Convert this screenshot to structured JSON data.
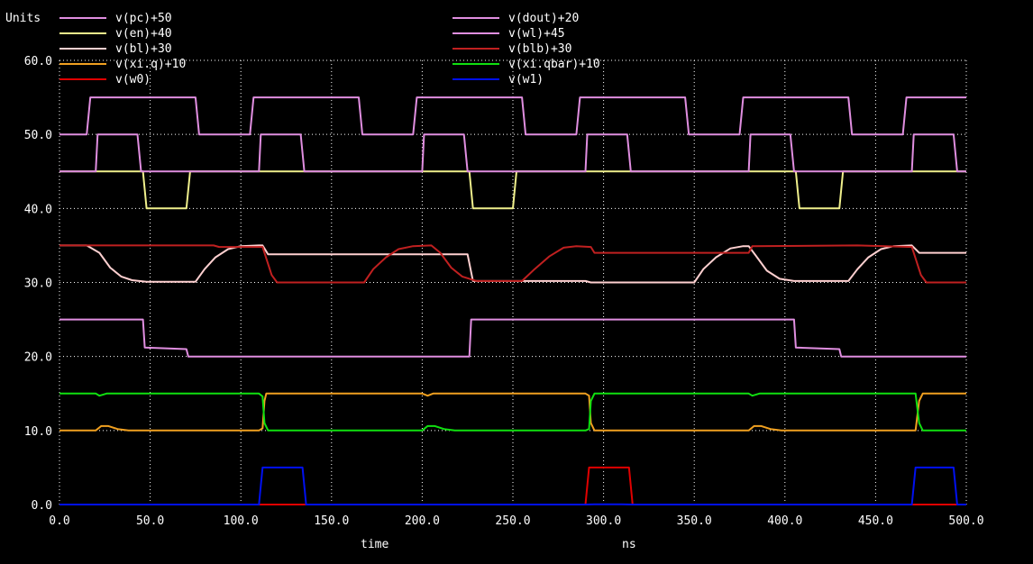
{
  "chart_data": {
    "type": "line",
    "units_label": "Units",
    "xlabel": "time",
    "xunit": "ns",
    "xlim": [
      0,
      500
    ],
    "ylim": [
      0,
      60
    ],
    "xticks": [
      "0.0",
      "50.0",
      "100.0",
      "150.0",
      "200.0",
      "250.0",
      "300.0",
      "350.0",
      "400.0",
      "450.0",
      "500.0"
    ],
    "yticks": [
      "0.0",
      "10.0",
      "20.0",
      "30.0",
      "40.0",
      "50.0",
      "60.0"
    ],
    "grid": true,
    "legend_position": "top",
    "series": [
      {
        "name": "v(pc)+50",
        "color": "#e08ee0",
        "points": [
          [
            0,
            50
          ],
          [
            15,
            50
          ],
          [
            17,
            55
          ],
          [
            75,
            55
          ],
          [
            77,
            50
          ],
          [
            105,
            50
          ],
          [
            107,
            55
          ],
          [
            165,
            55
          ],
          [
            167,
            50
          ],
          [
            195,
            50
          ],
          [
            197,
            55
          ],
          [
            255,
            55
          ],
          [
            257,
            50
          ],
          [
            285,
            50
          ],
          [
            287,
            55
          ],
          [
            345,
            55
          ],
          [
            347,
            50
          ],
          [
            375,
            50
          ],
          [
            377,
            55
          ],
          [
            435,
            55
          ],
          [
            437,
            50
          ],
          [
            465,
            50
          ],
          [
            467,
            55
          ],
          [
            500,
            55
          ]
        ]
      },
      {
        "name": "v(dout)+20",
        "color": "#e08ee0",
        "points": [
          [
            0,
            25
          ],
          [
            46,
            25
          ],
          [
            47,
            21.2
          ],
          [
            70,
            21
          ],
          [
            71,
            20
          ],
          [
            226,
            20
          ],
          [
            227,
            25
          ],
          [
            405,
            25
          ],
          [
            406,
            21.2
          ],
          [
            430,
            21
          ],
          [
            431,
            20
          ],
          [
            500,
            20
          ]
        ]
      },
      {
        "name": "v(en)+40",
        "color": "#f0f08c",
        "points": [
          [
            0,
            45
          ],
          [
            46,
            45
          ],
          [
            48,
            40
          ],
          [
            70,
            40
          ],
          [
            72,
            45
          ],
          [
            226,
            45
          ],
          [
            228,
            40
          ],
          [
            250,
            40
          ],
          [
            252,
            45
          ],
          [
            406,
            45
          ],
          [
            408,
            40
          ],
          [
            430,
            40
          ],
          [
            432,
            45
          ],
          [
            500,
            45
          ]
        ]
      },
      {
        "name": "v(wl)+45",
        "color": "#e08ee0",
        "points": [
          [
            0,
            45
          ],
          [
            20,
            45
          ],
          [
            21,
            50
          ],
          [
            43,
            50
          ],
          [
            45,
            45
          ],
          [
            110,
            45
          ],
          [
            111,
            50
          ],
          [
            133,
            50
          ],
          [
            135,
            45
          ],
          [
            200,
            45
          ],
          [
            201,
            50
          ],
          [
            223,
            50
          ],
          [
            225,
            45
          ],
          [
            290,
            45
          ],
          [
            291,
            50
          ],
          [
            313,
            50
          ],
          [
            315,
            45
          ],
          [
            380,
            45
          ],
          [
            381,
            50
          ],
          [
            403,
            50
          ],
          [
            405,
            45
          ],
          [
            470,
            45
          ],
          [
            471,
            50
          ],
          [
            493,
            50
          ],
          [
            495,
            45
          ],
          [
            500,
            45
          ]
        ]
      },
      {
        "name": "v(bl)+30",
        "color": "#ffd0d0",
        "points": [
          [
            0,
            35
          ],
          [
            15,
            35
          ],
          [
            22,
            34
          ],
          [
            28,
            32
          ],
          [
            34,
            30.8
          ],
          [
            40,
            30.3
          ],
          [
            48,
            30.1
          ],
          [
            75,
            30.1
          ],
          [
            80,
            31.8
          ],
          [
            86,
            33.4
          ],
          [
            93,
            34.5
          ],
          [
            100,
            34.9
          ],
          [
            110,
            35
          ],
          [
            112,
            35
          ],
          [
            115,
            33.8
          ],
          [
            225,
            33.8
          ],
          [
            228,
            30.2
          ],
          [
            290,
            30.2
          ],
          [
            293,
            30
          ],
          [
            350,
            30
          ],
          [
            355,
            31.8
          ],
          [
            362,
            33.4
          ],
          [
            370,
            34.6
          ],
          [
            377,
            34.9
          ],
          [
            380,
            34.9
          ],
          [
            384,
            33.6
          ],
          [
            390,
            31.6
          ],
          [
            397,
            30.5
          ],
          [
            405,
            30.2
          ],
          [
            435,
            30.2
          ],
          [
            440,
            31.8
          ],
          [
            446,
            33.4
          ],
          [
            453,
            34.5
          ],
          [
            460,
            34.9
          ],
          [
            470,
            35
          ],
          [
            474,
            34
          ],
          [
            500,
            34
          ]
        ]
      },
      {
        "name": "v(blb)+30",
        "color": "#c02020",
        "points": [
          [
            0,
            35
          ],
          [
            85,
            35
          ],
          [
            88,
            34.8
          ],
          [
            112,
            34.8
          ],
          [
            117,
            31
          ],
          [
            120,
            30
          ],
          [
            168,
            30
          ],
          [
            173,
            31.8
          ],
          [
            180,
            33.4
          ],
          [
            187,
            34.5
          ],
          [
            195,
            34.9
          ],
          [
            205,
            35
          ],
          [
            210,
            34
          ],
          [
            216,
            32
          ],
          [
            222,
            30.8
          ],
          [
            230,
            30.2
          ],
          [
            255,
            30.2
          ],
          [
            262,
            31.8
          ],
          [
            270,
            33.5
          ],
          [
            278,
            34.7
          ],
          [
            285,
            34.9
          ],
          [
            293,
            34.8
          ],
          [
            295,
            34
          ],
          [
            380,
            34
          ],
          [
            382,
            34.9
          ],
          [
            440,
            35
          ],
          [
            470,
            34.8
          ],
          [
            475,
            31
          ],
          [
            478,
            30
          ],
          [
            500,
            30
          ]
        ]
      },
      {
        "name": "v(xi.q)+10",
        "color": "#f0a020",
        "points": [
          [
            0,
            10
          ],
          [
            20,
            10
          ],
          [
            23,
            10.6
          ],
          [
            27,
            10.6
          ],
          [
            32,
            10.2
          ],
          [
            38,
            10
          ],
          [
            110,
            10
          ],
          [
            112,
            10.3
          ],
          [
            113,
            14
          ],
          [
            114,
            15
          ],
          [
            200,
            15
          ],
          [
            203,
            14.7
          ],
          [
            206,
            15
          ],
          [
            290,
            15
          ],
          [
            292,
            14.7
          ],
          [
            293,
            11
          ],
          [
            295,
            10
          ],
          [
            380,
            10
          ],
          [
            383,
            10.6
          ],
          [
            387,
            10.6
          ],
          [
            392,
            10.2
          ],
          [
            398,
            10
          ],
          [
            472,
            10
          ],
          [
            474,
            14
          ],
          [
            476,
            15
          ],
          [
            500,
            15
          ]
        ]
      },
      {
        "name": "v(xi.qbar)+10",
        "color": "#10e010",
        "points": [
          [
            0,
            15
          ],
          [
            20,
            15
          ],
          [
            22,
            14.7
          ],
          [
            26,
            15
          ],
          [
            110,
            15
          ],
          [
            112,
            14.6
          ],
          [
            113,
            11
          ],
          [
            115,
            10
          ],
          [
            200,
            10
          ],
          [
            203,
            10.6
          ],
          [
            207,
            10.6
          ],
          [
            212,
            10.2
          ],
          [
            218,
            10
          ],
          [
            290,
            10
          ],
          [
            292,
            10.2
          ],
          [
            293,
            14
          ],
          [
            295,
            15
          ],
          [
            380,
            15
          ],
          [
            382,
            14.7
          ],
          [
            386,
            15
          ],
          [
            472,
            15
          ],
          [
            474,
            11
          ],
          [
            476,
            10
          ],
          [
            500,
            10
          ]
        ]
      },
      {
        "name": "v(w0)",
        "color": "#e00000",
        "points": [
          [
            0,
            0
          ],
          [
            290,
            0
          ],
          [
            292,
            5
          ],
          [
            314,
            5
          ],
          [
            316,
            0
          ],
          [
            500,
            0
          ]
        ]
      },
      {
        "name": "v(w1)",
        "color": "#0010f0",
        "points": [
          [
            0,
            0
          ],
          [
            110,
            0
          ],
          [
            112,
            5
          ],
          [
            134,
            5
          ],
          [
            136,
            0
          ],
          [
            290,
            0
          ],
          [
            295,
            0.02
          ],
          [
            310,
            0.02
          ],
          [
            316,
            0
          ],
          [
            470,
            0
          ],
          [
            472,
            5
          ],
          [
            493,
            5
          ],
          [
            495,
            0
          ],
          [
            500,
            0
          ]
        ]
      }
    ]
  }
}
